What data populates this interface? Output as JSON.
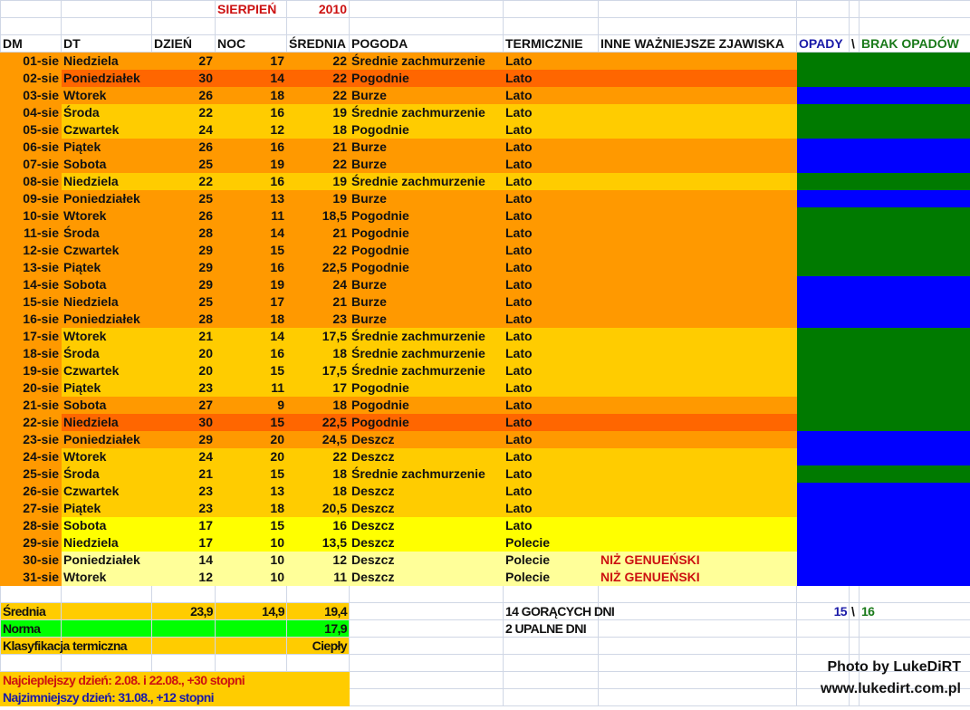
{
  "title": {
    "month": "SIERPIEŃ",
    "year": "2010"
  },
  "headers": {
    "dm": "DM",
    "dt": "DT",
    "dzien": "DZIEŃ",
    "noc": "NOC",
    "srednia": "ŚREDNIA",
    "pogoda": "POGODA",
    "termicznie": "TERMICZNIE",
    "inne": "INNE WAŻNIEJSZE ZJAWISKA",
    "opady": "OPADY",
    "sep": "\\",
    "brak": "BRAK OPADÓW"
  },
  "colors": {
    "orange": "#FF9900",
    "dark_orange": "#FF6600",
    "amber": "#FFCC00",
    "yellow": "#FFFF00",
    "pale": "#FFFF99",
    "rain": "#0000FF",
    "dry": "#007A00",
    "norma": "#00FF00"
  },
  "rows": [
    {
      "dm": "01-sie",
      "dt": "Niedziela",
      "dzien": "27",
      "noc": "17",
      "sr": "22",
      "pogoda": "Średnie zachmurzenie",
      "term": "Lato",
      "inne": "",
      "bg": "orange",
      "opady": "dry"
    },
    {
      "dm": "02-sie",
      "dt": "Poniedziałek",
      "dzien": "30",
      "noc": "14",
      "sr": "22",
      "pogoda": "Pogodnie",
      "term": "Lato",
      "inne": "",
      "bg": "dark_orange",
      "opady": "dry"
    },
    {
      "dm": "03-sie",
      "dt": "Wtorek",
      "dzien": "26",
      "noc": "18",
      "sr": "22",
      "pogoda": "Burze",
      "term": "Lato",
      "inne": "",
      "bg": "orange",
      "opady": "rain"
    },
    {
      "dm": "04-sie",
      "dt": "Środa",
      "dzien": "22",
      "noc": "16",
      "sr": "19",
      "pogoda": "Średnie zachmurzenie",
      "term": "Lato",
      "inne": "",
      "bg": "amber",
      "opady": "dry"
    },
    {
      "dm": "05-sie",
      "dt": "Czwartek",
      "dzien": "24",
      "noc": "12",
      "sr": "18",
      "pogoda": "Pogodnie",
      "term": "Lato",
      "inne": "",
      "bg": "amber",
      "opady": "dry"
    },
    {
      "dm": "06-sie",
      "dt": "Piątek",
      "dzien": "26",
      "noc": "16",
      "sr": "21",
      "pogoda": "Burze",
      "term": "Lato",
      "inne": "",
      "bg": "orange",
      "opady": "rain"
    },
    {
      "dm": "07-sie",
      "dt": "Sobota",
      "dzien": "25",
      "noc": "19",
      "sr": "22",
      "pogoda": "Burze",
      "term": "Lato",
      "inne": "",
      "bg": "orange",
      "opady": "rain"
    },
    {
      "dm": "08-sie",
      "dt": "Niedziela",
      "dzien": "22",
      "noc": "16",
      "sr": "19",
      "pogoda": "Średnie zachmurzenie",
      "term": "Lato",
      "inne": "",
      "bg": "amber",
      "opady": "dry"
    },
    {
      "dm": "09-sie",
      "dt": "Poniedziałek",
      "dzien": "25",
      "noc": "13",
      "sr": "19",
      "pogoda": "Burze",
      "term": "Lato",
      "inne": "",
      "bg": "orange",
      "opady": "rain"
    },
    {
      "dm": "10-sie",
      "dt": "Wtorek",
      "dzien": "26",
      "noc": "11",
      "sr": "18,5",
      "pogoda": "Pogodnie",
      "term": "Lato",
      "inne": "",
      "bg": "orange",
      "opady": "dry"
    },
    {
      "dm": "11-sie",
      "dt": "Środa",
      "dzien": "28",
      "noc": "14",
      "sr": "21",
      "pogoda": "Pogodnie",
      "term": "Lato",
      "inne": "",
      "bg": "orange",
      "opady": "dry"
    },
    {
      "dm": "12-sie",
      "dt": "Czwartek",
      "dzien": "29",
      "noc": "15",
      "sr": "22",
      "pogoda": "Pogodnie",
      "term": "Lato",
      "inne": "",
      "bg": "orange",
      "opady": "dry"
    },
    {
      "dm": "13-sie",
      "dt": "Piątek",
      "dzien": "29",
      "noc": "16",
      "sr": "22,5",
      "pogoda": "Pogodnie",
      "term": "Lato",
      "inne": "",
      "bg": "orange",
      "opady": "dry"
    },
    {
      "dm": "14-sie",
      "dt": "Sobota",
      "dzien": "29",
      "noc": "19",
      "sr": "24",
      "pogoda": "Burze",
      "term": "Lato",
      "inne": "",
      "bg": "orange",
      "opady": "rain"
    },
    {
      "dm": "15-sie",
      "dt": "Niedziela",
      "dzien": "25",
      "noc": "17",
      "sr": "21",
      "pogoda": "Burze",
      "term": "Lato",
      "inne": "",
      "bg": "orange",
      "opady": "rain"
    },
    {
      "dm": "16-sie",
      "dt": "Poniedziałek",
      "dzien": "28",
      "noc": "18",
      "sr": "23",
      "pogoda": "Burze",
      "term": "Lato",
      "inne": "",
      "bg": "orange",
      "opady": "rain"
    },
    {
      "dm": "17-sie",
      "dt": "Wtorek",
      "dzien": "21",
      "noc": "14",
      "sr": "17,5",
      "pogoda": "Średnie zachmurzenie",
      "term": "Lato",
      "inne": "",
      "bg": "amber",
      "opady": "dry"
    },
    {
      "dm": "18-sie",
      "dt": "Środa",
      "dzien": "20",
      "noc": "16",
      "sr": "18",
      "pogoda": "Średnie zachmurzenie",
      "term": "Lato",
      "inne": "",
      "bg": "amber",
      "opady": "dry"
    },
    {
      "dm": "19-sie",
      "dt": "Czwartek",
      "dzien": "20",
      "noc": "15",
      "sr": "17,5",
      "pogoda": "Średnie zachmurzenie",
      "term": "Lato",
      "inne": "",
      "bg": "amber",
      "opady": "dry"
    },
    {
      "dm": "20-sie",
      "dt": "Piątek",
      "dzien": "23",
      "noc": "11",
      "sr": "17",
      "pogoda": "Pogodnie",
      "term": "Lato",
      "inne": "",
      "bg": "amber",
      "opady": "dry"
    },
    {
      "dm": "21-sie",
      "dt": "Sobota",
      "dzien": "27",
      "noc": "9",
      "sr": "18",
      "pogoda": "Pogodnie",
      "term": "Lato",
      "inne": "",
      "bg": "orange",
      "opady": "dry"
    },
    {
      "dm": "22-sie",
      "dt": "Niedziela",
      "dzien": "30",
      "noc": "15",
      "sr": "22,5",
      "pogoda": "Pogodnie",
      "term": "Lato",
      "inne": "",
      "bg": "dark_orange",
      "opady": "dry"
    },
    {
      "dm": "23-sie",
      "dt": "Poniedziałek",
      "dzien": "29",
      "noc": "20",
      "sr": "24,5",
      "pogoda": "Deszcz",
      "term": "Lato",
      "inne": "",
      "bg": "orange",
      "opady": "rain"
    },
    {
      "dm": "24-sie",
      "dt": "Wtorek",
      "dzien": "24",
      "noc": "20",
      "sr": "22",
      "pogoda": "Deszcz",
      "term": "Lato",
      "inne": "",
      "bg": "amber",
      "opady": "rain"
    },
    {
      "dm": "25-sie",
      "dt": "Środa",
      "dzien": "21",
      "noc": "15",
      "sr": "18",
      "pogoda": "Średnie zachmurzenie",
      "term": "Lato",
      "inne": "",
      "bg": "amber",
      "opady": "dry"
    },
    {
      "dm": "26-sie",
      "dt": "Czwartek",
      "dzien": "23",
      "noc": "13",
      "sr": "18",
      "pogoda": "Deszcz",
      "term": "Lato",
      "inne": "",
      "bg": "amber",
      "opady": "rain"
    },
    {
      "dm": "27-sie",
      "dt": "Piątek",
      "dzien": "23",
      "noc": "18",
      "sr": "20,5",
      "pogoda": "Deszcz",
      "term": "Lato",
      "inne": "",
      "bg": "amber",
      "opady": "rain"
    },
    {
      "dm": "28-sie",
      "dt": "Sobota",
      "dzien": "17",
      "noc": "15",
      "sr": "16",
      "pogoda": "Deszcz",
      "term": "Lato",
      "inne": "",
      "bg": "yellow",
      "opady": "rain"
    },
    {
      "dm": "29-sie",
      "dt": "Niedziela",
      "dzien": "17",
      "noc": "10",
      "sr": "13,5",
      "pogoda": "Deszcz",
      "term": "Polecie",
      "inne": "",
      "bg": "yellow",
      "opady": "rain"
    },
    {
      "dm": "30-sie",
      "dt": "Poniedziałek",
      "dzien": "14",
      "noc": "10",
      "sr": "12",
      "pogoda": "Deszcz",
      "term": "Polecie",
      "inne": "NIŻ GENUEŃSKI",
      "bg": "pale",
      "opady": "rain"
    },
    {
      "dm": "31-sie",
      "dt": "Wtorek",
      "dzien": "12",
      "noc": "10",
      "sr": "11",
      "pogoda": "Deszcz",
      "term": "Polecie",
      "inne": "NIŻ GENUEŃSKI",
      "bg": "pale",
      "opady": "rain"
    }
  ],
  "summary": {
    "srednia_label": "Średnia",
    "srednia_dzien": "23,9",
    "srednia_noc": "14,9",
    "srednia_sr": "19,4",
    "norma_label": "Norma",
    "norma_value": "17,9",
    "klas_label": "Klasyfikacja termiczna",
    "klas_value": "Ciepły",
    "hot_days": "14 GORĄCYCH DNI",
    "upalne": "2 UPALNE DNI",
    "opady_count": "15",
    "sep": "\\",
    "brak_count": "16",
    "warmest": "Najcieplejszy dzień: 2.08. i 22.08., +30 stopni",
    "coldest": "Najzimniejszy dzień: 31.08., +12 stopni"
  },
  "credit": {
    "line1": "Photo by LukeDiRT",
    "line2": "www.lukedirt.com.pl"
  }
}
